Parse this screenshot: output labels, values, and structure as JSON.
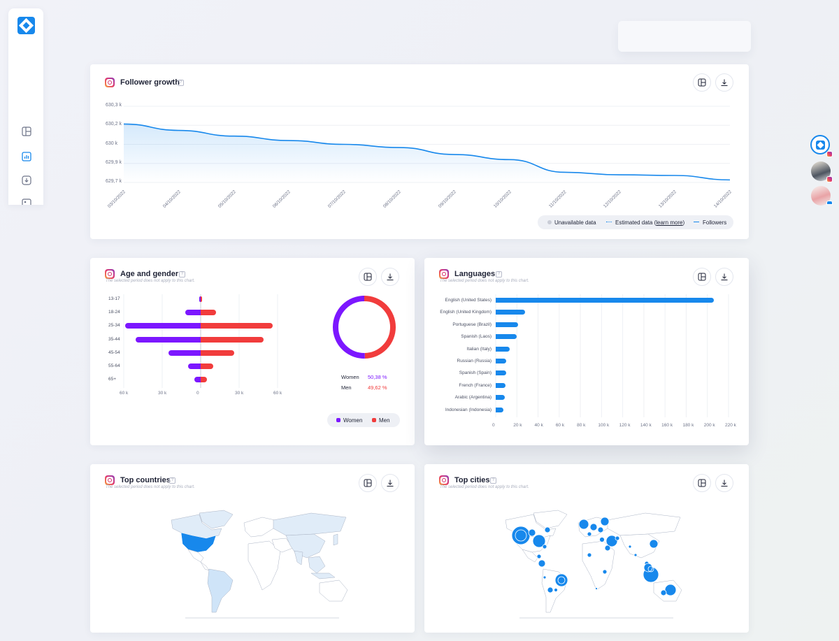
{
  "colors": {
    "accent": "#1788ec",
    "women": "#7c17ff",
    "men": "#f13c3c",
    "map_land": "#ffffff",
    "map_highlight": "#1788ec",
    "map_light": "#cfe4f8"
  },
  "sidebar": {
    "items": [
      {
        "icon": "dashboard-icon"
      },
      {
        "icon": "chart-icon",
        "active": true
      },
      {
        "icon": "download-icon"
      },
      {
        "icon": "image-icon"
      }
    ]
  },
  "follower_growth": {
    "title": "Follower growth",
    "help": "?",
    "legend": {
      "unavailable": "Unavailable data",
      "estimated": "Estimated data (",
      "learn_more": "learn more",
      "estimated_close": ")",
      "followers": "Followers"
    }
  },
  "age_gender": {
    "title": "Age and gender",
    "help": "?",
    "subtitle": "The selected period does not apply to this chart.",
    "women_label": "Women",
    "women_value": "50,38 %",
    "men_label": "Men",
    "men_value": "49,62 %",
    "legend_women": "Women",
    "legend_men": "Men"
  },
  "languages": {
    "title": "Languages",
    "help": "?",
    "subtitle": "The selected period does not apply to this chart."
  },
  "top_countries": {
    "title": "Top countries",
    "help": "?",
    "subtitle": "The selected period does not apply to this chart."
  },
  "top_cities": {
    "title": "Top cities",
    "help": "?",
    "subtitle": "The selected period does not apply to this chart."
  },
  "chart_data": [
    {
      "type": "line",
      "x": [
        "03/10/2022",
        "04/10/2022",
        "05/10/2022",
        "06/10/2022",
        "07/10/2022",
        "08/10/2022",
        "09/10/2022",
        "10/10/2022",
        "11/10/2022",
        "12/10/2022",
        "13/10/2022",
        "14/10/2022"
      ],
      "y_tick_labels": [
        "630,3 k",
        "630,2 k",
        "630 k",
        "629,9 k",
        "629,7 k"
      ],
      "y_ticks": [
        630300,
        630150,
        630000,
        629850,
        629700
      ],
      "ylim": [
        629700,
        630300
      ],
      "series": [
        {
          "name": "Followers",
          "values": [
            630160,
            630110,
            630065,
            630030,
            630000,
            629975,
            629920,
            629880,
            629780,
            629760,
            629755,
            629720
          ]
        }
      ]
    },
    {
      "type": "bar",
      "categories": [
        "13-17",
        "18-24",
        "25-34",
        "35-44",
        "45-54",
        "55-64",
        "65+"
      ],
      "x_tick_labels": [
        "60 k",
        "30 k",
        "0",
        "30 k",
        "60 k"
      ],
      "series": [
        {
          "name": "Women",
          "values": [
            1000,
            12000,
            59000,
            51000,
            25000,
            10000,
            5000
          ]
        },
        {
          "name": "Men",
          "values": [
            1000,
            12000,
            56000,
            49000,
            26000,
            10000,
            5000
          ]
        }
      ]
    },
    {
      "type": "pie",
      "categories": [
        "Women",
        "Men"
      ],
      "values": [
        50.38,
        49.62
      ]
    },
    {
      "type": "bar",
      "categories": [
        "English (United States)",
        "English (United Kingdom)",
        "Portuguese (Brazil)",
        "Spanish (Laos)",
        "Italian (Italy)",
        "Russian (Russia)",
        "Spanish (Spain)",
        "French (France)",
        "Arabic (Argentina)",
        "Indonesian (Indonesia)"
      ],
      "values": [
        206000,
        28000,
        21000,
        20000,
        13000,
        10000,
        10000,
        9500,
        8500,
        7000
      ],
      "x_tick_labels": [
        "0",
        "20 k",
        "40 k",
        "60 k",
        "80 k",
        "100 k",
        "120 k",
        "140 k",
        "160 k",
        "180 k",
        "200 k",
        "220 k"
      ],
      "xlim": [
        0,
        220000
      ]
    }
  ]
}
